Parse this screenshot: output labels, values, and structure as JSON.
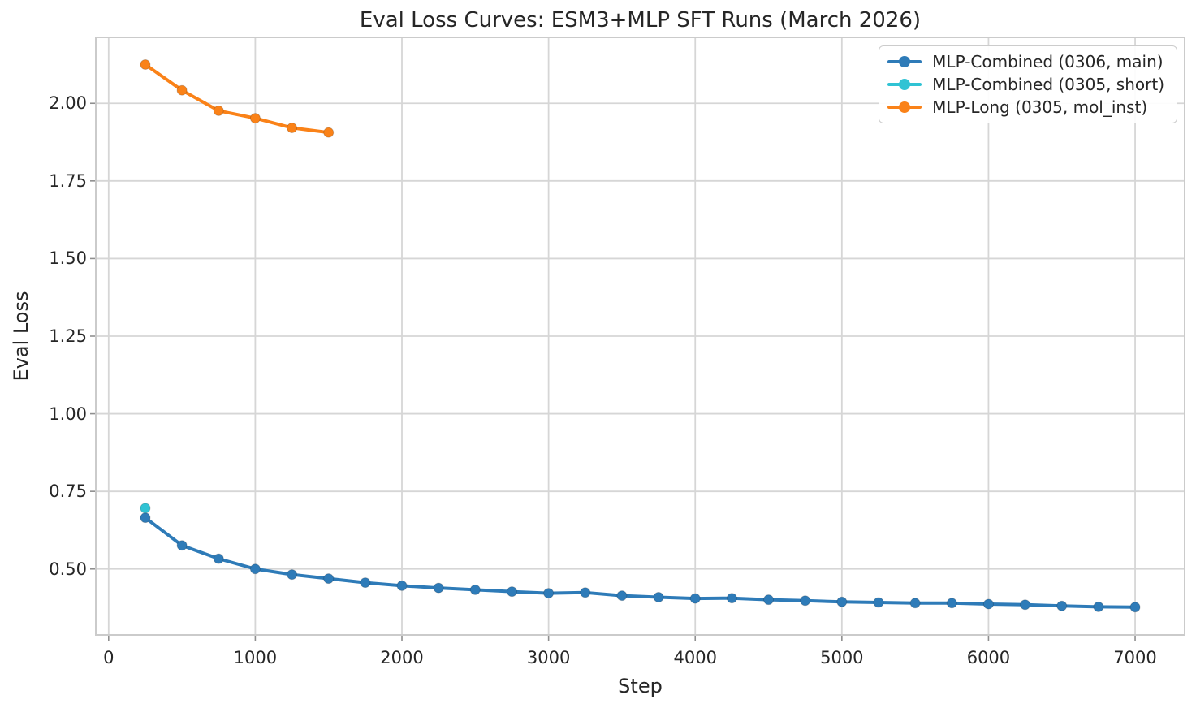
{
  "chart_data": {
    "type": "line",
    "title": "Eval Loss Curves: ESM3+MLP SFT Runs (March 2026)",
    "xlabel": "Step",
    "ylabel": "Eval Loss",
    "xlim": [
      -87.5,
      7337.5
    ],
    "ylim": [
      0.2875,
      2.2125
    ],
    "grid": true,
    "legend_position": "upper right",
    "colors": {
      "grid": "#d6d6d6",
      "spine": "#cbcbcb",
      "tick": "#8f8f8f",
      "text": "#262626",
      "background": "#ffffff"
    },
    "xticks": [
      0,
      1000,
      2000,
      3000,
      4000,
      5000,
      6000,
      7000
    ],
    "xtick_labels": [
      "0",
      "1000",
      "2000",
      "3000",
      "4000",
      "5000",
      "6000",
      "7000"
    ],
    "yticks": [
      0.5,
      0.75,
      1.0,
      1.25,
      1.5,
      1.75,
      2.0
    ],
    "ytick_labels": [
      "0.50",
      "0.75",
      "1.00",
      "1.25",
      "1.50",
      "1.75",
      "2.00"
    ],
    "series": [
      {
        "name": "MLP-Combined (0306, main)",
        "color": "#2e7bb8",
        "x": [
          250,
          500,
          750,
          1000,
          1250,
          1500,
          1750,
          2000,
          2250,
          2500,
          2750,
          3000,
          3250,
          3500,
          3750,
          4000,
          4250,
          4500,
          4750,
          5000,
          5250,
          5500,
          5750,
          6000,
          6250,
          6500,
          6750,
          7000
        ],
        "y": [
          0.665,
          0.576,
          0.533,
          0.5,
          0.482,
          0.469,
          0.456,
          0.446,
          0.439,
          0.433,
          0.427,
          0.422,
          0.424,
          0.414,
          0.409,
          0.405,
          0.406,
          0.401,
          0.398,
          0.394,
          0.392,
          0.39,
          0.39,
          0.387,
          0.385,
          0.381,
          0.378,
          0.377
        ]
      },
      {
        "name": "MLP-Combined (0305, short)",
        "color": "#30c3d4",
        "x": [
          250
        ],
        "y": [
          0.696
        ]
      },
      {
        "name": "MLP-Long (0305, mol_inst)",
        "color": "#fa8218",
        "x": [
          250,
          500,
          750,
          1000,
          1250,
          1500
        ],
        "y": [
          2.125,
          2.042,
          1.976,
          1.952,
          1.921,
          1.906
        ]
      }
    ]
  }
}
